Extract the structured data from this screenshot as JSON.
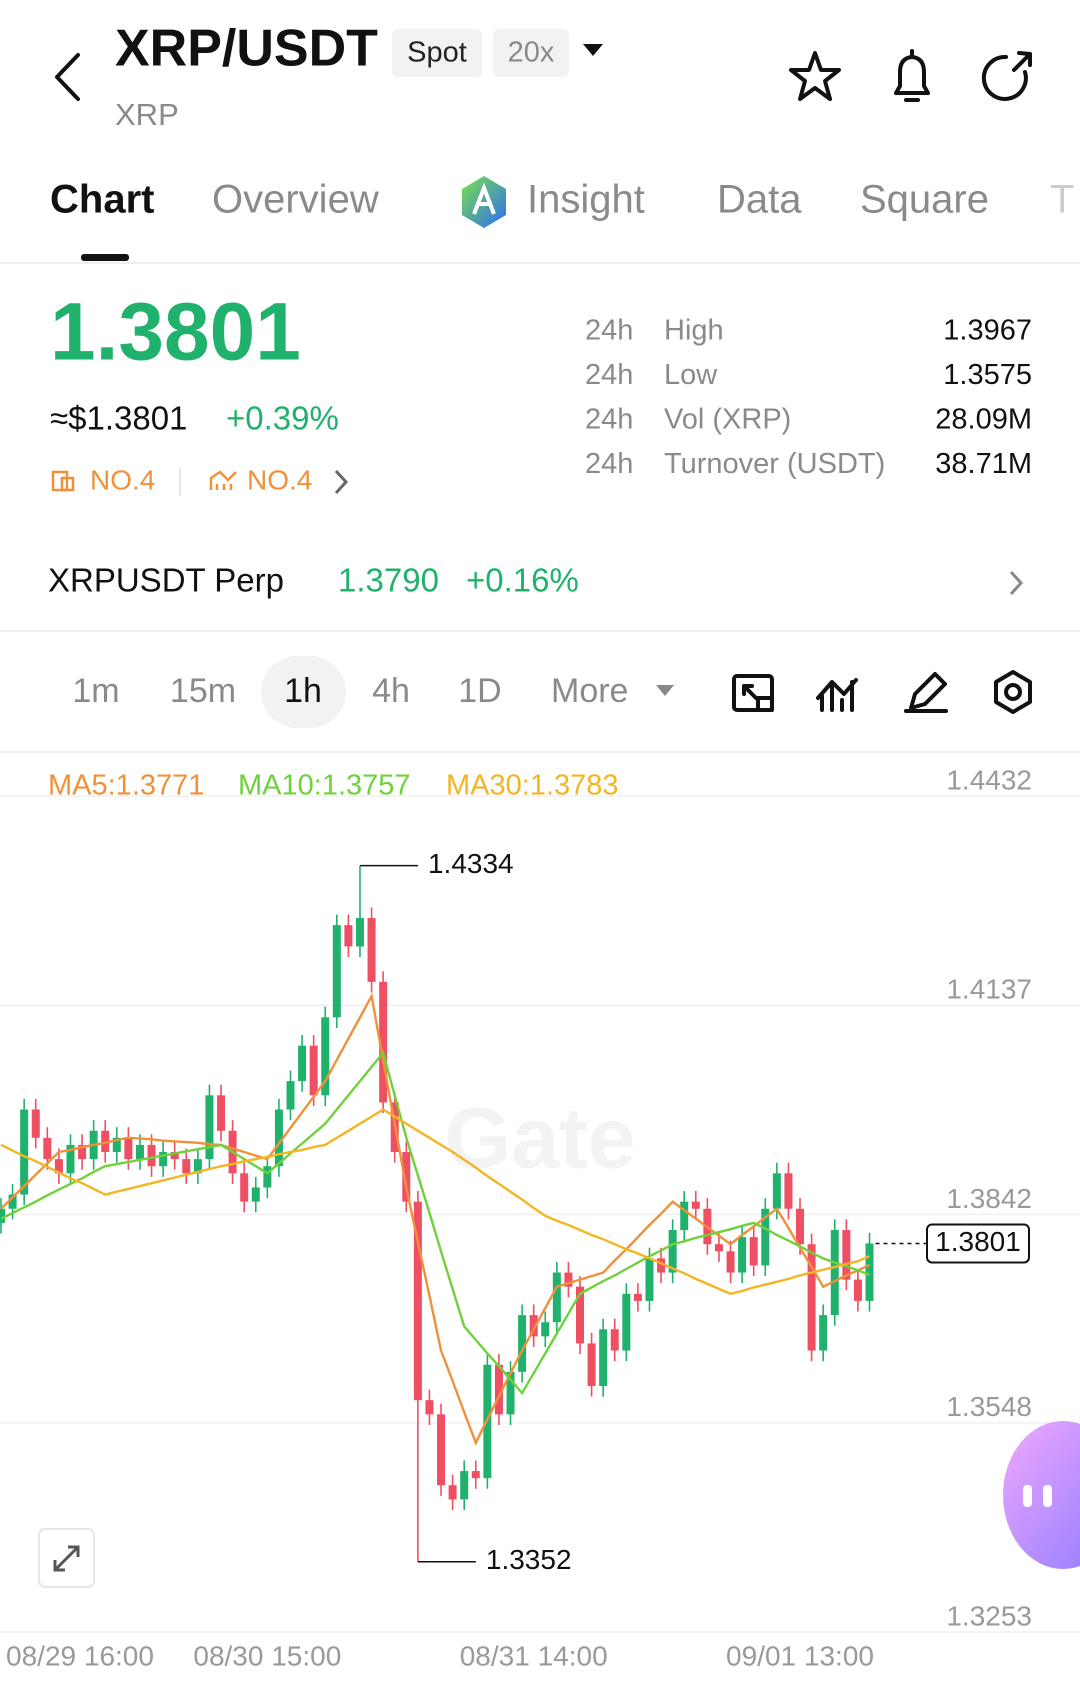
{
  "header": {
    "title": "XRP/USDT",
    "tag_spot": "Spot",
    "tag_leverage": "20x",
    "subtitle": "XRP"
  },
  "tabs": [
    "Chart",
    "Overview",
    "Insight",
    "Data",
    "Square",
    "T"
  ],
  "ticker": {
    "price": "1.3801",
    "usd_price": "≈$1.3801",
    "change": "+0.39%",
    "rank_1": "NO.4",
    "rank_2": "NO.4",
    "stats": [
      {
        "period": "24h",
        "label": "High",
        "value": "1.3967"
      },
      {
        "period": "24h",
        "label": "Low",
        "value": "1.3575"
      },
      {
        "period": "24h",
        "label": "Vol (XRP)",
        "value": "28.09M"
      },
      {
        "period": "24h",
        "label": "Turnover (USDT)",
        "value": "38.71M"
      }
    ]
  },
  "perp": {
    "name": "XRPUSDT Perp",
    "price": "1.3790",
    "change": "+0.16%"
  },
  "timeframes": [
    "1m",
    "15m",
    "1h",
    "4h",
    "1D",
    "More"
  ],
  "chart_data": {
    "type": "candlestick",
    "watermark": "Gate",
    "categories": [
      "08/29 16:00",
      null,
      null,
      null,
      null,
      null,
      null,
      null,
      null,
      null,
      null,
      null,
      null,
      null,
      null,
      null,
      null,
      null,
      null,
      null,
      null,
      null,
      null,
      "08/30 15:00",
      null,
      null,
      null,
      null,
      null,
      null,
      null,
      null,
      null,
      null,
      null,
      null,
      null,
      null,
      null,
      null,
      null,
      null,
      null,
      null,
      null,
      null,
      "08/31 14:00",
      null,
      null,
      null,
      null,
      null,
      null,
      null,
      null,
      null,
      null,
      null,
      null,
      null,
      null,
      null,
      null,
      null,
      null,
      null,
      null,
      null,
      null,
      "09/01 13:00",
      null,
      null,
      null,
      null,
      null,
      null
    ],
    "open": [
      1.383,
      1.385,
      1.387,
      1.399,
      1.395,
      1.392,
      1.39,
      1.394,
      1.392,
      1.396,
      1.393,
      1.395,
      1.392,
      1.394,
      1.391,
      1.393,
      1.392,
      1.39,
      1.392,
      1.401,
      1.396,
      1.39,
      1.386,
      1.388,
      1.391,
      1.399,
      1.403,
      1.408,
      1.401,
      1.412,
      1.425,
      1.422,
      1.426,
      1.417,
      1.4,
      1.393,
      1.386,
      1.358,
      1.356,
      1.346,
      1.344,
      1.348,
      1.347,
      1.363,
      1.356,
      1.362,
      1.37,
      1.367,
      1.369,
      1.376,
      1.374,
      1.366,
      1.36,
      1.368,
      1.365,
      1.373,
      1.372,
      1.378,
      1.376,
      1.382,
      1.386,
      1.385,
      1.38,
      1.379,
      1.376,
      1.381,
      1.377,
      1.385,
      1.39,
      1.385,
      1.38,
      1.365,
      1.37,
      1.382,
      1.375,
      1.372
    ],
    "high": [
      1.3865,
      1.3885,
      1.4005,
      1.4005,
      1.3965,
      1.3935,
      1.3955,
      1.3955,
      1.3975,
      1.3975,
      1.3965,
      1.3965,
      1.3955,
      1.3955,
      1.3945,
      1.3945,
      1.3935,
      1.3935,
      1.4025,
      1.4025,
      1.3975,
      1.3915,
      1.3895,
      1.3925,
      1.4005,
      1.4045,
      1.4095,
      1.4095,
      1.4135,
      1.4265,
      1.4265,
      1.4334,
      1.4275,
      1.4185,
      1.4015,
      1.3945,
      1.3875,
      1.3595,
      1.3575,
      1.3475,
      1.3495,
      1.3495,
      1.3645,
      1.3645,
      1.3635,
      1.3715,
      1.3715,
      1.3705,
      1.3775,
      1.3775,
      1.3755,
      1.3675,
      1.3695,
      1.3695,
      1.3745,
      1.3745,
      1.3795,
      1.3795,
      1.3835,
      1.3875,
      1.3875,
      1.3865,
      1.3815,
      1.3805,
      1.3825,
      1.3825,
      1.3865,
      1.3915,
      1.3915,
      1.3865,
      1.3815,
      1.3715,
      1.3835,
      1.3835,
      1.3765,
      1.3816
    ],
    "low": [
      1.3815,
      1.3835,
      1.3855,
      1.3935,
      1.3905,
      1.3885,
      1.3885,
      1.3905,
      1.3905,
      1.3915,
      1.3915,
      1.3905,
      1.3905,
      1.3895,
      1.3895,
      1.3905,
      1.3885,
      1.3885,
      1.3905,
      1.3945,
      1.3885,
      1.3845,
      1.3845,
      1.3865,
      1.3895,
      1.3975,
      1.4015,
      1.3995,
      1.3995,
      1.4105,
      1.4205,
      1.4205,
      1.4155,
      1.3985,
      1.3915,
      1.3845,
      1.3352,
      1.3545,
      1.3445,
      1.3425,
      1.3425,
      1.3455,
      1.3455,
      1.3545,
      1.3545,
      1.3605,
      1.3655,
      1.3655,
      1.3675,
      1.3725,
      1.3645,
      1.3585,
      1.3585,
      1.3635,
      1.3635,
      1.3705,
      1.3705,
      1.3745,
      1.3745,
      1.3805,
      1.3835,
      1.3785,
      1.3775,
      1.3745,
      1.3745,
      1.3755,
      1.3755,
      1.3835,
      1.3835,
      1.3785,
      1.3635,
      1.3635,
      1.3685,
      1.3735,
      1.3705,
      1.3705
    ],
    "close": [
      1.385,
      1.387,
      1.399,
      1.395,
      1.392,
      1.39,
      1.394,
      1.392,
      1.396,
      1.393,
      1.395,
      1.392,
      1.394,
      1.391,
      1.393,
      1.392,
      1.39,
      1.392,
      1.401,
      1.396,
      1.39,
      1.386,
      1.388,
      1.391,
      1.399,
      1.403,
      1.408,
      1.401,
      1.412,
      1.425,
      1.422,
      1.426,
      1.417,
      1.4,
      1.393,
      1.386,
      1.358,
      1.356,
      1.346,
      1.344,
      1.348,
      1.347,
      1.363,
      1.356,
      1.362,
      1.37,
      1.367,
      1.369,
      1.376,
      1.374,
      1.366,
      1.36,
      1.368,
      1.365,
      1.373,
      1.372,
      1.378,
      1.376,
      1.382,
      1.386,
      1.385,
      1.38,
      1.379,
      1.376,
      1.381,
      1.377,
      1.385,
      1.39,
      1.385,
      1.38,
      1.365,
      1.37,
      1.382,
      1.375,
      1.372,
      1.3801
    ],
    "up_color": "#20b26c",
    "down_color": "#ef4f62",
    "series": [
      {
        "name": "MA5:1.3771",
        "color": "#f0913a",
        "values": [
          1.385,
          1.3866,
          1.3882,
          1.3898,
          1.3914,
          1.393,
          1.3933,
          1.3937,
          1.394,
          1.3943,
          1.3947,
          1.395,
          1.3949,
          1.3948,
          1.3946,
          1.3945,
          1.3944,
          1.3943,
          1.3941,
          1.394,
          1.3935,
          1.393,
          1.3925,
          1.392,
          1.3942,
          1.3964,
          1.3986,
          1.4008,
          1.403,
          1.406,
          1.409,
          1.412,
          1.415,
          1.406,
          1.397,
          1.388,
          1.3803,
          1.3727,
          1.365,
          1.3607,
          1.3563,
          1.352,
          1.3553,
          1.3585,
          1.3618,
          1.365,
          1.368,
          1.371,
          1.374,
          1.3745,
          1.375,
          1.3755,
          1.376,
          1.3777,
          1.3793,
          1.381,
          1.3827,
          1.3843,
          1.386,
          1.3848,
          1.3836,
          1.3824,
          1.3812,
          1.38,
          1.3813,
          1.3825,
          1.3838,
          1.385,
          1.3823,
          1.3795,
          1.3768,
          1.374,
          1.3748,
          1.3756,
          1.3763,
          1.3771
        ]
      },
      {
        "name": "MA10:1.3757",
        "color": "#6fd13b",
        "values": [
          1.3836,
          1.3844,
          1.3852,
          1.386,
          1.3869,
          1.3877,
          1.3885,
          1.3893,
          1.3902,
          1.391,
          1.3913,
          1.3916,
          1.3919,
          1.3922,
          1.3925,
          1.3928,
          1.3931,
          1.3934,
          1.3937,
          1.394,
          1.393,
          1.392,
          1.391,
          1.39,
          1.3914,
          1.3928,
          1.3942,
          1.3956,
          1.397,
          1.399,
          1.401,
          1.403,
          1.405,
          1.407,
          1.401,
          1.395,
          1.3897,
          1.3844,
          1.379,
          1.3737,
          1.3684,
          1.3665,
          1.3646,
          1.3628,
          1.3609,
          1.359,
          1.3618,
          1.3646,
          1.3674,
          1.3702,
          1.373,
          1.3739,
          1.3748,
          1.3756,
          1.3765,
          1.3774,
          1.3783,
          1.3791,
          1.38,
          1.3804,
          1.3809,
          1.3813,
          1.3817,
          1.3821,
          1.3826,
          1.383,
          1.3822,
          1.3813,
          1.3805,
          1.3797,
          1.3788,
          1.378,
          1.3774,
          1.3769,
          1.3763,
          1.3757
        ]
      },
      {
        "name": "MA30:1.3783",
        "color": "#f3b523",
        "values": [
          1.394,
          1.3932,
          1.3924,
          1.3917,
          1.3909,
          1.3901,
          1.3893,
          1.3886,
          1.3878,
          1.387,
          1.3874,
          1.3878,
          1.3882,
          1.3886,
          1.389,
          1.3894,
          1.3898,
          1.3902,
          1.3906,
          1.391,
          1.3913,
          1.3917,
          1.392,
          1.3923,
          1.3927,
          1.393,
          1.3933,
          1.3937,
          1.394,
          1.395,
          1.396,
          1.397,
          1.398,
          1.399,
          1.398,
          1.397,
          1.396,
          1.395,
          1.394,
          1.393,
          1.3919,
          1.3908,
          1.3896,
          1.3885,
          1.3874,
          1.3863,
          1.3851,
          1.384,
          1.3833,
          1.3827,
          1.382,
          1.3813,
          1.3807,
          1.38,
          1.3793,
          1.3787,
          1.378,
          1.3773,
          1.3766,
          1.3759,
          1.3751,
          1.3744,
          1.3737,
          1.373,
          1.3734,
          1.3739,
          1.3743,
          1.3747,
          1.3751,
          1.3756,
          1.376,
          1.3764,
          1.3768,
          1.3772,
          1.3776,
          1.3783
        ]
      }
    ],
    "ylim": [
      1.3253,
      1.449
    ],
    "yticks": [
      1.4432,
      1.4137,
      1.3842,
      1.3548,
      1.3253
    ],
    "grid": true
  }
}
